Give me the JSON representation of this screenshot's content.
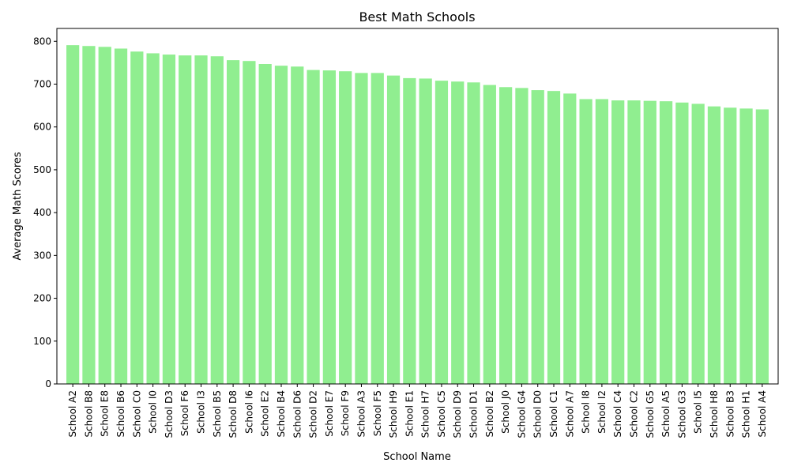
{
  "chart_data": {
    "type": "bar",
    "title": "Best Math Schools",
    "xlabel": "School Name",
    "ylabel": "Average Math Scores",
    "ylim": [
      0,
      830
    ],
    "yticks": [
      0,
      100,
      200,
      300,
      400,
      500,
      600,
      700,
      800
    ],
    "grid": false,
    "bar_color": "#90ee90",
    "categories": [
      "School A2",
      "School B8",
      "School E8",
      "School B6",
      "School C0",
      "School I0",
      "School D3",
      "School F6",
      "School I3",
      "School B5",
      "School D8",
      "School I6",
      "School E2",
      "School B4",
      "School D6",
      "School D2",
      "School E7",
      "School F9",
      "School A3",
      "School F5",
      "School H9",
      "School E1",
      "School H7",
      "School C5",
      "School D9",
      "School D1",
      "School B2",
      "School J0",
      "School G4",
      "School D0",
      "School C1",
      "School A7",
      "School I8",
      "School I2",
      "School C4",
      "School C2",
      "School G5",
      "School A5",
      "School G3",
      "School I5",
      "School H8",
      "School B3",
      "School H1",
      "School A4"
    ],
    "values": [
      791,
      789,
      787,
      783,
      776,
      772,
      769,
      767,
      767,
      765,
      756,
      754,
      747,
      743,
      741,
      733,
      732,
      730,
      726,
      726,
      720,
      714,
      713,
      708,
      706,
      704,
      698,
      693,
      691,
      686,
      684,
      678,
      665,
      665,
      662,
      662,
      661,
      660,
      657,
      654,
      648,
      645,
      643,
      641
    ]
  }
}
